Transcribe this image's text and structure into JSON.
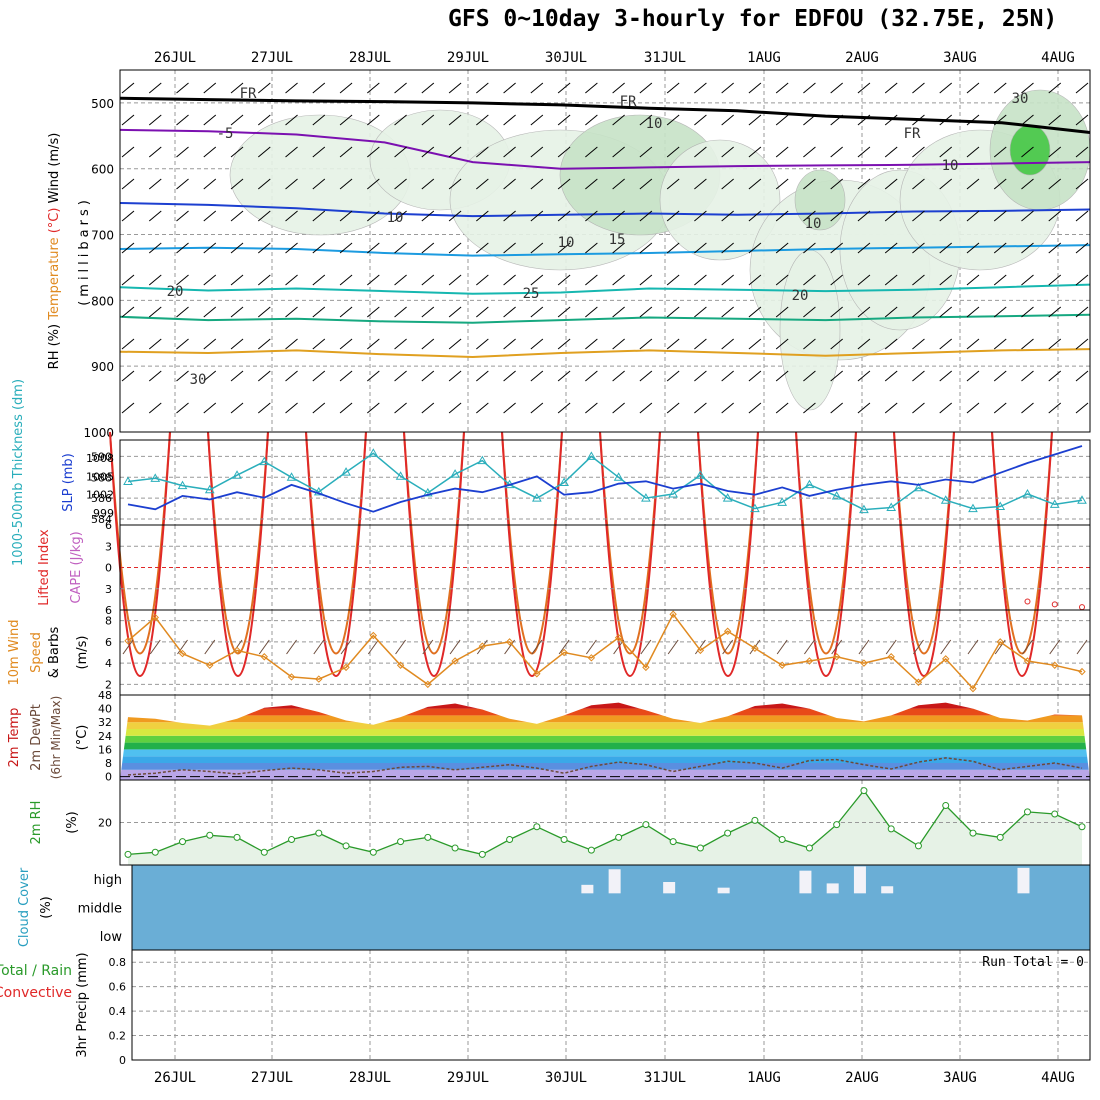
{
  "title": "GFS 0~10day 3-hourly for EDFOU (32.75E, 25N)",
  "colors": {
    "grid": "#999999",
    "frame": "#000000",
    "temp_contours": [
      "#7b10b0",
      "#1c3fd0",
      "#1c9be0",
      "#16b7b0",
      "#16a880",
      "#e0a020",
      "#e07020",
      "#e02828"
    ],
    "rh_fill": [
      "#e6f2e6",
      "#c7e3c7",
      "#8ed08e",
      "#46c846"
    ],
    "thickness": "#2aaebb",
    "slp": "#1c3fd0",
    "lifted": "#e02828",
    "cape": "#c060c0",
    "wind10": "#e08a20",
    "rh2m": "#2a9a2a",
    "rh2m_fill": "#e6f2e6",
    "cloud_bg": "#6aaed6",
    "cloud_bar": "#f2f2f8"
  },
  "chart_data": [
    {
      "panel": "cross-section",
      "type": "heatmap",
      "ylabel_parts": [
        {
          "text": "RH (%)",
          "color": "#000000"
        },
        {
          "text": "Temperature",
          "color": "#e08a20"
        },
        {
          "text": "(°C)",
          "color": "#e02828"
        },
        {
          "text": "Wind (m/s)",
          "color": "#000000"
        }
      ],
      "ylabel2": "(millibars)",
      "ytick_labels": [
        "500",
        "600",
        "700",
        "800",
        "900",
        "1000"
      ],
      "ylim": [
        1000,
        450
      ],
      "x_date_labels": [
        "26JUL",
        "27JUL",
        "28JUL",
        "29JUL",
        "30JUL",
        "31JUL",
        "1AUG",
        "2AUG",
        "3AUG",
        "4AUG"
      ],
      "contour_labels": [
        "FR",
        "FR",
        "FR",
        "-5",
        "10",
        "10",
        "15",
        "20",
        "20",
        "25",
        "30",
        "10",
        "10",
        "10",
        "30"
      ],
      "isotherms": [
        {
          "value": -5,
          "color": "#7b10b0",
          "levels": [
            541,
            543,
            548,
            560,
            590,
            600,
            598,
            596,
            595,
            594,
            592,
            590
          ]
        },
        {
          "value": 0,
          "color": "#000000",
          "levels": [
            493,
            495,
            497,
            498,
            500,
            503,
            508,
            512,
            520,
            525,
            530,
            545
          ]
        },
        {
          "value": 10,
          "color": "#1c3fd0",
          "levels": [
            652,
            655,
            660,
            668,
            672,
            670,
            668,
            670,
            668,
            665,
            664,
            662
          ]
        },
        {
          "value": 15,
          "color": "#1c9be0",
          "levels": [
            722,
            720,
            722,
            728,
            732,
            730,
            728,
            725,
            722,
            720,
            718,
            716
          ]
        },
        {
          "value": 20,
          "color": "#16b7b0",
          "levels": [
            780,
            785,
            782,
            786,
            790,
            788,
            782,
            784,
            786,
            784,
            780,
            776
          ]
        },
        {
          "value": 25,
          "color": "#16a880",
          "levels": [
            825,
            830,
            828,
            832,
            834,
            830,
            826,
            828,
            830,
            826,
            824,
            822
          ]
        },
        {
          "value": 30,
          "color": "#e0a020",
          "levels": [
            878,
            880,
            876,
            882,
            886,
            880,
            876,
            880,
            884,
            880,
            876,
            874
          ]
        }
      ]
    },
    {
      "panel": "thickness-slp",
      "type": "line",
      "ylabel_left": "1000-500mb Thickness (dm)",
      "ylabel_right": "SLP (mb)",
      "left_ticks": [
        "590",
        "588",
        "586",
        "584"
      ],
      "right_ticks": [
        "1008",
        "1005",
        "1002",
        "999"
      ],
      "ylim_left": [
        584,
        591
      ],
      "ylim_right": [
        998,
        1010
      ],
      "series": [
        {
          "name": "1000-500mb Thickness (dm)",
          "axis": "left",
          "values": [
            587.6,
            587.9,
            587.2,
            586.8,
            588.2,
            589.5,
            588.0,
            586.6,
            588.5,
            590.3,
            588.1,
            586.5,
            588.3,
            589.6,
            587.3,
            586.0,
            587.5,
            590.0,
            588.0,
            586.0,
            586.4,
            588.2,
            586.0,
            585.0,
            585.6,
            587.3,
            586.2,
            584.9,
            585.1,
            587.0,
            585.8,
            585.0,
            585.2,
            586.4,
            585.4,
            585.8
          ]
        },
        {
          "name": "SLP (mb)",
          "axis": "right",
          "values": [
            1000.4,
            999.6,
            1001.8,
            1001.2,
            1002.4,
            1001.5,
            1003.6,
            1002.2,
            1000.6,
            999.2,
            1000.8,
            1002.0,
            1003.0,
            1002.4,
            1003.6,
            1005.0,
            1002.0,
            1002.4,
            1003.8,
            1004.2,
            1003.0,
            1003.8,
            1002.6,
            1002.0,
            1003.2,
            1001.8,
            1002.8,
            1003.6,
            1004.2,
            1003.6,
            1004.5,
            1004.0,
            1005.6,
            1007.2,
            1008.6,
            1010.0
          ]
        }
      ]
    },
    {
      "panel": "lifted-cape",
      "type": "line",
      "ylabel_left": "Lifted Index",
      "ylabel_right": "CAPE (J/kg)",
      "ticks": [
        "6",
        "3",
        "0",
        "3",
        "6"
      ],
      "ylim": [
        6,
        -6
      ],
      "series": [
        {
          "name": "Lifted Index",
          "values": [
            null,
            null,
            null,
            null,
            null,
            null,
            null,
            null,
            null,
            null,
            null,
            null,
            null,
            null,
            null,
            null,
            null,
            null,
            null,
            null,
            null,
            null,
            null,
            null,
            null,
            null,
            null,
            null,
            null,
            null,
            null,
            null,
            null,
            4.8,
            5.2,
            5.6
          ]
        },
        {
          "name": "CAPE (J/kg)",
          "values": [
            0,
            0,
            0,
            0,
            0,
            0,
            0,
            0,
            0,
            0,
            0,
            0,
            0,
            0,
            0,
            0,
            0,
            0,
            0,
            0,
            0,
            0,
            0,
            0,
            0,
            0,
            0,
            0,
            0,
            0,
            0,
            0,
            0,
            0,
            0,
            0
          ]
        }
      ]
    },
    {
      "panel": "wind10m",
      "type": "line",
      "ylabel_left": "10m Wind",
      "ylabel_mid": "Speed",
      "ylabel_right": "& Barbs",
      "ylabel_units": "(m/s)",
      "ticks": [
        "8",
        "6",
        "4",
        "2"
      ],
      "ylim": [
        1,
        9
      ],
      "series": [
        {
          "name": "10m Wind Speed",
          "values": [
            6.1,
            8.3,
            4.9,
            3.8,
            5.2,
            4.6,
            2.7,
            2.5,
            3.6,
            6.6,
            3.8,
            2.0,
            4.2,
            5.6,
            6.0,
            3.0,
            5.0,
            4.5,
            6.4,
            3.6,
            8.6,
            5.2,
            7.0,
            5.4,
            3.8,
            4.2,
            4.6,
            4.0,
            4.6,
            2.2,
            4.4,
            1.6,
            6.0,
            4.2,
            3.8,
            3.2
          ]
        }
      ]
    },
    {
      "panel": "temp-dewpt",
      "type": "area",
      "ylabel_1": "2m Temp",
      "ylabel_2": "2m DewPt",
      "ylabel_3": "(6hr Min/Max)",
      "ylabel_units": "(°C)",
      "ticks": [
        "48",
        "40",
        "32",
        "24",
        "16",
        "8",
        "0"
      ],
      "ylim": [
        -2,
        48
      ],
      "series": [
        {
          "name": "2m Temp",
          "values": [
            35.0,
            34.0,
            31.5,
            30.0,
            34.0,
            40.5,
            42.0,
            38.0,
            33.0,
            30.5,
            35.0,
            41.0,
            43.0,
            39.5,
            34.0,
            31.0,
            36.0,
            42.0,
            43.5,
            39.0,
            34.0,
            31.5,
            35.5,
            41.5,
            43.0,
            40.0,
            34.5,
            32.5,
            36.0,
            42.0,
            43.5,
            40.0,
            34.5,
            33.0,
            36.5,
            36.0
          ]
        },
        {
          "name": "2m DewPt",
          "values": [
            1.0,
            2.0,
            4.0,
            3.0,
            1.5,
            3.5,
            5.0,
            4.0,
            2.0,
            3.0,
            5.5,
            6.0,
            4.0,
            5.5,
            7.0,
            5.0,
            2.0,
            6.0,
            8.5,
            7.0,
            3.0,
            6.0,
            9.0,
            8.0,
            5.0,
            9.5,
            10.0,
            7.0,
            4.5,
            8.5,
            11.0,
            9.0,
            4.0,
            6.0,
            8.0,
            5.0
          ]
        }
      ]
    },
    {
      "panel": "rh2m",
      "type": "line",
      "ylabel_left": "2m RH",
      "ylabel_units": "(%)",
      "ticks": [
        "20"
      ],
      "ylim": [
        0,
        40
      ],
      "series": [
        {
          "name": "2m RH",
          "values": [
            5,
            6,
            11,
            14,
            13,
            6,
            12,
            15,
            9,
            6,
            11,
            13,
            8,
            5,
            12,
            18,
            12,
            7,
            13,
            19,
            11,
            8,
            15,
            21,
            12,
            8,
            19,
            35,
            17,
            9,
            28,
            15,
            13,
            25,
            24,
            18
          ]
        }
      ]
    },
    {
      "panel": "cloud-cover",
      "type": "bar",
      "ylabel": "Cloud Cover",
      "ylabel_units": "(%)",
      "levels": [
        "high",
        "middle",
        "low"
      ],
      "series": [
        {
          "name": "high",
          "values": [
            0,
            0,
            0,
            0,
            0,
            0,
            0,
            0,
            0,
            0,
            0,
            0,
            0,
            0,
            0,
            0,
            0,
            30,
            85,
            0,
            40,
            0,
            20,
            0,
            0,
            80,
            35,
            95,
            25,
            0,
            0,
            0,
            0,
            90,
            0,
            0
          ]
        },
        {
          "name": "middle",
          "values": [
            0,
            0,
            0,
            0,
            0,
            0,
            0,
            0,
            0,
            0,
            0,
            0,
            0,
            0,
            0,
            0,
            0,
            0,
            0,
            0,
            0,
            0,
            0,
            0,
            0,
            0,
            0,
            0,
            0,
            0,
            0,
            0,
            0,
            0,
            0,
            0
          ]
        },
        {
          "name": "low",
          "values": [
            0,
            0,
            0,
            0,
            0,
            0,
            0,
            0,
            0,
            0,
            0,
            0,
            0,
            0,
            0,
            0,
            0,
            0,
            0,
            0,
            0,
            0,
            0,
            0,
            0,
            0,
            0,
            0,
            0,
            0,
            0,
            0,
            0,
            0,
            0,
            0
          ]
        }
      ]
    },
    {
      "panel": "precip",
      "type": "bar",
      "ylabel_1": "Total / Rain",
      "ylabel_2": "Convective",
      "ylabel_units": "3hr Precip (mm)",
      "ticks": [
        "0.8",
        "0.6",
        "0.4",
        "0.2",
        "0"
      ],
      "ylim": [
        0,
        0.9
      ],
      "run_total": "Run Total = 0",
      "series": [
        {
          "name": "Total / Rain",
          "values": [
            0,
            0,
            0,
            0,
            0,
            0,
            0,
            0,
            0,
            0,
            0,
            0,
            0,
            0,
            0,
            0,
            0,
            0,
            0,
            0,
            0,
            0,
            0,
            0,
            0,
            0,
            0,
            0,
            0,
            0,
            0,
            0,
            0,
            0,
            0,
            0
          ]
        },
        {
          "name": "Convective",
          "values": [
            0,
            0,
            0,
            0,
            0,
            0,
            0,
            0,
            0,
            0,
            0,
            0,
            0,
            0,
            0,
            0,
            0,
            0,
            0,
            0,
            0,
            0,
            0,
            0,
            0,
            0,
            0,
            0,
            0,
            0,
            0,
            0,
            0,
            0,
            0,
            0
          ]
        }
      ]
    }
  ]
}
